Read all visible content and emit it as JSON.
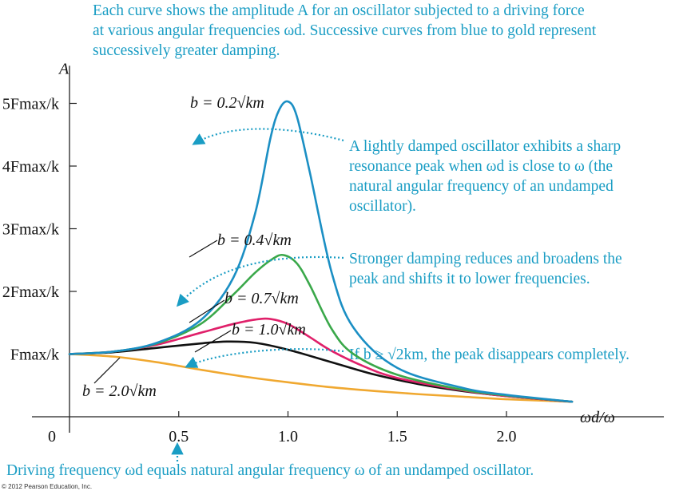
{
  "caption_top": [
    "Each curve shows the amplitude A for an oscillator subjected to a driving force",
    "at various angular frequencies ωd. Successive curves from blue to gold represent",
    "successively greater damping."
  ],
  "annotations": {
    "light": [
      "A lightly damped oscillator exhibits a sharp",
      "resonance peak when ωd is close to ω (the",
      "natural angular frequency of an undamped",
      "oscillator)."
    ],
    "strong": [
      "Stronger damping reduces and broadens the",
      "peak and shifts it to lower frequencies."
    ],
    "critical": "If b ≥ √2km, the peak disappears completely.",
    "bottom": "Driving frequency ωd equals natural angular frequency ω of an undamped oscillator."
  },
  "copyright": "© 2012 Pearson Education, Inc.",
  "colors": {
    "accent_text": "#1a9dc4",
    "series": [
      "#1b8fc4",
      "#3aa84a",
      "#e0206a",
      "#111111",
      "#f0a830"
    ]
  },
  "chart_data": {
    "type": "line",
    "ylabel": "A",
    "xlabel": "ωd/ω",
    "xlim": [
      0,
      2.3
    ],
    "ylim": [
      0,
      5.6
    ],
    "x_ticks": [
      "0",
      "0.5",
      "1.0",
      "1.5",
      "2.0"
    ],
    "y_ticks": [
      "Fmax/k",
      "2Fmax/k",
      "3Fmax/k",
      "4Fmax/k",
      "5Fmax/k"
    ],
    "series": [
      {
        "name": "b = 0.2√km",
        "values": [
          [
            0,
            1.0
          ],
          [
            0.2,
            1.04
          ],
          [
            0.4,
            1.18
          ],
          [
            0.6,
            1.54
          ],
          [
            0.75,
            2.22
          ],
          [
            0.85,
            3.25
          ],
          [
            0.92,
            4.45
          ],
          [
            0.96,
            4.9
          ],
          [
            1.0,
            5.03
          ],
          [
            1.04,
            4.8
          ],
          [
            1.1,
            3.9
          ],
          [
            1.2,
            2.3
          ],
          [
            1.3,
            1.42
          ],
          [
            1.5,
            0.78
          ],
          [
            1.8,
            0.46
          ],
          [
            2.0,
            0.35
          ],
          [
            2.3,
            0.24
          ]
        ]
      },
      {
        "name": "b = 0.4√km",
        "values": [
          [
            0,
            1.0
          ],
          [
            0.2,
            1.04
          ],
          [
            0.4,
            1.17
          ],
          [
            0.6,
            1.48
          ],
          [
            0.75,
            1.95
          ],
          [
            0.85,
            2.3
          ],
          [
            0.93,
            2.52
          ],
          [
            0.98,
            2.58
          ],
          [
            1.04,
            2.45
          ],
          [
            1.1,
            2.1
          ],
          [
            1.2,
            1.4
          ],
          [
            1.3,
            1.0
          ],
          [
            1.5,
            0.67
          ],
          [
            1.8,
            0.43
          ],
          [
            2.0,
            0.34
          ],
          [
            2.3,
            0.24
          ]
        ]
      },
      {
        "name": "b = 0.7√km",
        "values": [
          [
            0,
            1.0
          ],
          [
            0.2,
            1.04
          ],
          [
            0.4,
            1.15
          ],
          [
            0.6,
            1.34
          ],
          [
            0.75,
            1.48
          ],
          [
            0.85,
            1.55
          ],
          [
            0.92,
            1.56
          ],
          [
            1.0,
            1.48
          ],
          [
            1.1,
            1.27
          ],
          [
            1.2,
            1.05
          ],
          [
            1.35,
            0.8
          ],
          [
            1.5,
            0.62
          ],
          [
            1.8,
            0.42
          ],
          [
            2.0,
            0.33
          ],
          [
            2.3,
            0.24
          ]
        ]
      },
      {
        "name": "b = 1.0√km",
        "values": [
          [
            0,
            1.0
          ],
          [
            0.2,
            1.03
          ],
          [
            0.4,
            1.1
          ],
          [
            0.6,
            1.17
          ],
          [
            0.72,
            1.2
          ],
          [
            0.85,
            1.18
          ],
          [
            1.0,
            1.07
          ],
          [
            1.2,
            0.87
          ],
          [
            1.4,
            0.67
          ],
          [
            1.6,
            0.52
          ],
          [
            1.8,
            0.41
          ],
          [
            2.0,
            0.33
          ],
          [
            2.3,
            0.24
          ]
        ]
      },
      {
        "name": "b = 2.0√km",
        "values": [
          [
            0,
            1.0
          ],
          [
            0.2,
            0.96
          ],
          [
            0.4,
            0.87
          ],
          [
            0.6,
            0.75
          ],
          [
            0.8,
            0.64
          ],
          [
            1.0,
            0.55
          ],
          [
            1.2,
            0.47
          ],
          [
            1.4,
            0.41
          ],
          [
            1.6,
            0.36
          ],
          [
            1.8,
            0.32
          ],
          [
            2.0,
            0.28
          ],
          [
            2.3,
            0.24
          ]
        ]
      }
    ]
  }
}
